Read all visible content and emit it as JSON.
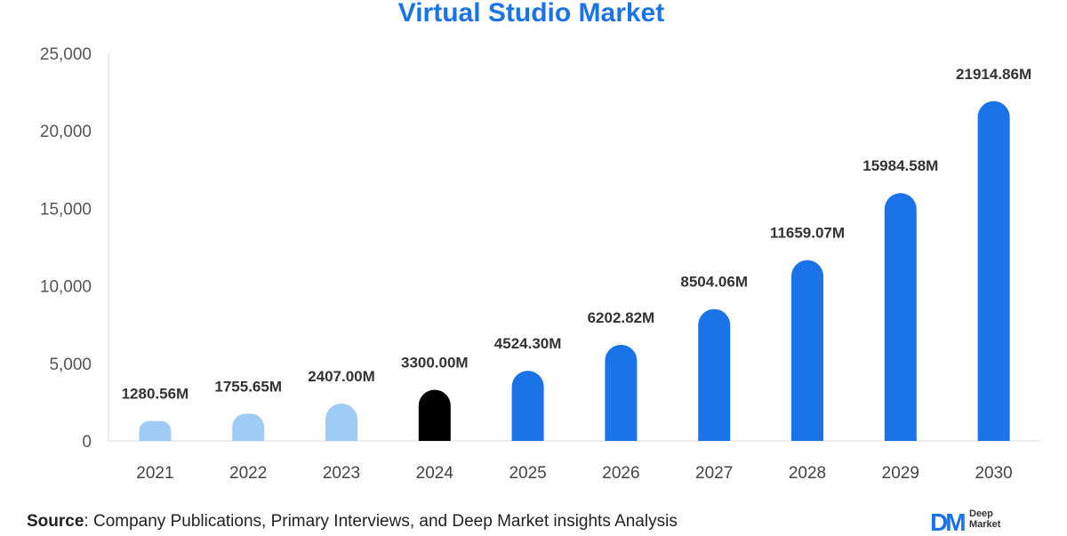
{
  "chart_data": {
    "type": "bar",
    "title": "Virtual Studio Market",
    "categories": [
      "2021",
      "2022",
      "2023",
      "2024",
      "2025",
      "2026",
      "2027",
      "2028",
      "2029",
      "2030"
    ],
    "values": [
      1280.56,
      1755.65,
      2407.0,
      3300.0,
      4524.3,
      6202.82,
      8504.06,
      11659.07,
      15984.58,
      21914.86
    ],
    "value_labels": [
      "1280.56M",
      "1755.65M",
      "2407.00M",
      "3300.00M",
      "4524.30M",
      "6202.82M",
      "8504.06M",
      "11659.07M",
      "15984.58M",
      "21914.86M"
    ],
    "bar_colors": [
      "#9fcbf7",
      "#9fcbf7",
      "#9fcbf7",
      "#000000",
      "#1a73e8",
      "#1a73e8",
      "#1a73e8",
      "#1a73e8",
      "#1a73e8",
      "#1a73e8"
    ],
    "yticks": [
      0,
      5000,
      10000,
      15000,
      20000,
      25000
    ],
    "ytick_labels": [
      "0",
      "5,000",
      "10,000",
      "15,000",
      "20,000",
      "25,000"
    ],
    "ylim": [
      0,
      25000
    ],
    "xlabel": "",
    "ylabel": "",
    "grid": false
  },
  "footer": {
    "source_label": "Source",
    "source_text": ": Company Publications, Primary Interviews, and Deep Market insights Analysis"
  },
  "logo": {
    "mark": "DM",
    "line1": "Deep",
    "line2": "Market"
  },
  "colors": {
    "accent": "#1a73e8",
    "historic": "#9fcbf7",
    "base_year": "#000000"
  }
}
